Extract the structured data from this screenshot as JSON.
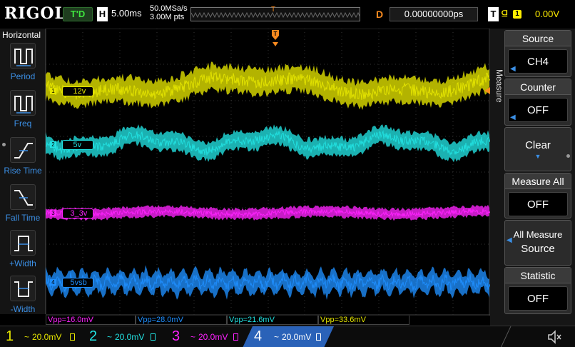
{
  "brand": "RIGOL",
  "status": {
    "run_state": "T'D",
    "h_label": "H",
    "timebase": "5.00ms",
    "sample_rate": "50.0MSa/s",
    "mem_depth": "3.00M pts",
    "delay_label": "D",
    "delay_value": "0.00000000ps",
    "trigger_label": "T",
    "trigger_source": "1",
    "trigger_level": "0.00V"
  },
  "horizontal_menu": {
    "title": "Horizontal",
    "items": [
      {
        "label": "Period"
      },
      {
        "label": "Freq"
      },
      {
        "label": "Rise Time"
      },
      {
        "label": "Fall Time"
      },
      {
        "label": "+Width"
      },
      {
        "label": "-Width"
      }
    ]
  },
  "channels": [
    {
      "num": "1",
      "tag": "12v",
      "color": "#e6e600",
      "scale": "20.0mV"
    },
    {
      "num": "2",
      "tag": "5v",
      "color": "#22e3e3",
      "scale": "20.0mV"
    },
    {
      "num": "3",
      "tag": "3_3v",
      "color": "#ff22ff",
      "scale": "20.0mV"
    },
    {
      "num": "4",
      "tag": "5vsb",
      "color": "#1f8fff",
      "scale": "20.0mV"
    }
  ],
  "measurements": [
    {
      "text": "Vpp=16.0mV",
      "color": "#ff22ff"
    },
    {
      "text": "Vpp=28.0mV",
      "color": "#1f8fff"
    },
    {
      "text": "Vpp=21.6mV",
      "color": "#22e3e3"
    },
    {
      "text": "Vpp=33.6mV",
      "color": "#e6e600"
    }
  ],
  "measure_menu": {
    "tab": "Measure",
    "source_label": "Source",
    "source_value": "CH4",
    "counter_label": "Counter",
    "counter_value": "OFF",
    "clear_label": "Clear",
    "measure_all_label": "Measure All",
    "measure_all_value": "OFF",
    "all_measure_source_line1": "All Measure",
    "all_measure_source_line2": "Source",
    "statistic_label": "Statistic",
    "statistic_value": "OFF"
  },
  "colors": {
    "trigger_orange": "#f88a1f",
    "menu_blue": "#3b8fe5",
    "run_green": "#3fe33f"
  },
  "icons": {
    "speaker": "speaker-icon"
  }
}
